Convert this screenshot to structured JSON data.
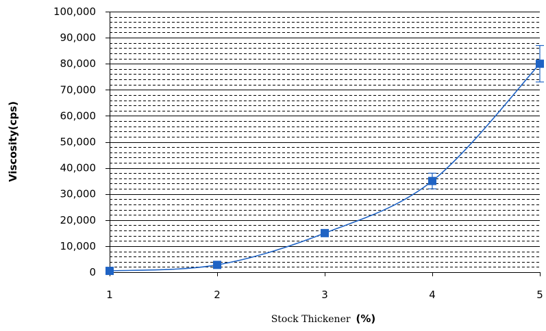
{
  "chart_data": {
    "type": "scatter",
    "title": "",
    "xlabel": "Stock Thickener",
    "xlabel_unit": "(%)",
    "ylabel": "Viscosity(cps)",
    "xlim": [
      1,
      5
    ],
    "ylim": [
      0,
      100000
    ],
    "x_ticks": [
      "1",
      "2",
      "3",
      "4",
      "5"
    ],
    "y_ticks": [
      "0",
      "10,000",
      "20,000",
      "30,000",
      "40,000",
      "50,000",
      "60,000",
      "70,000",
      "80,000",
      "90,000",
      "100,000"
    ],
    "grid": {
      "major": true,
      "minor_dashed": true
    },
    "series": [
      {
        "x": [
          1,
          2,
          3,
          4,
          5
        ],
        "values": [
          500,
          2800,
          15000,
          35000,
          80000
        ],
        "error": [
          0,
          600,
          1000,
          3000,
          7000
        ],
        "smooth_line": true,
        "marker": "square"
      }
    ]
  },
  "colors": {
    "series": "#1f63c4",
    "major_grid": "#000000",
    "minor_grid": "#000000"
  }
}
